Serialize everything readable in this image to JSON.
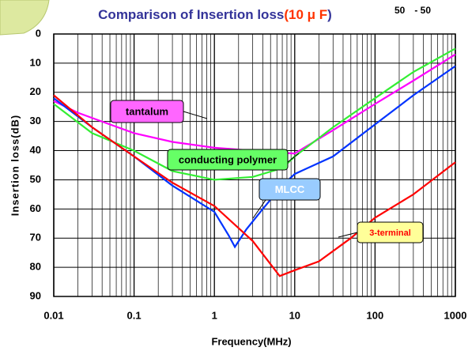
{
  "chart_data": {
    "type": "line",
    "title_parts": [
      "Comparison of Insertion loss",
      "(",
      "10 μ F",
      ")"
    ],
    "corner_note": "50　- 50",
    "x_label": "Frequency(MHz)",
    "y_label": "Insertion loss(dB)",
    "xscale": "log",
    "xlim": [
      0.01,
      1000
    ],
    "xticks": [
      0.01,
      0.1,
      1,
      10,
      100,
      1000
    ],
    "ylim": [
      0,
      90
    ],
    "y_inverted": true,
    "yticks": [
      0,
      10,
      20,
      30,
      40,
      50,
      60,
      70,
      80,
      90
    ],
    "grid": true,
    "series": [
      {
        "name": "tantalum",
        "color": "#ff00ff",
        "x": [
          0.01,
          0.02,
          0.05,
          0.1,
          0.3,
          1,
          3,
          10,
          30,
          100,
          300,
          1000
        ],
        "values": [
          23,
          27,
          31,
          34,
          37,
          39,
          40,
          41,
          33,
          24,
          16,
          7
        ]
      },
      {
        "name": "conducting polymer",
        "color": "#33ee33",
        "x": [
          0.01,
          0.03,
          0.1,
          0.3,
          1,
          3,
          7,
          10,
          30,
          100,
          300,
          1000
        ],
        "values": [
          24,
          34,
          40,
          47,
          50,
          49,
          46,
          42,
          32,
          22,
          13,
          5
        ]
      },
      {
        "name": "MLCC",
        "color": "#0033ff",
        "x": [
          0.01,
          0.03,
          0.1,
          0.3,
          1,
          1.5,
          1.8,
          2.5,
          4,
          7,
          10,
          30,
          100,
          300,
          1000
        ],
        "values": [
          22,
          32,
          42,
          52,
          61,
          69,
          73,
          67,
          60,
          52,
          48,
          42,
          31,
          21,
          11
        ]
      },
      {
        "name": "3-terminal",
        "color": "#ff0000",
        "x": [
          0.01,
          0.03,
          0.1,
          0.3,
          1,
          3,
          6.5,
          10,
          20,
          50,
          100,
          300,
          1000
        ],
        "values": [
          21,
          32,
          42,
          51,
          59,
          71,
          83,
          81,
          78,
          70,
          63,
          55,
          44
        ]
      }
    ]
  }
}
